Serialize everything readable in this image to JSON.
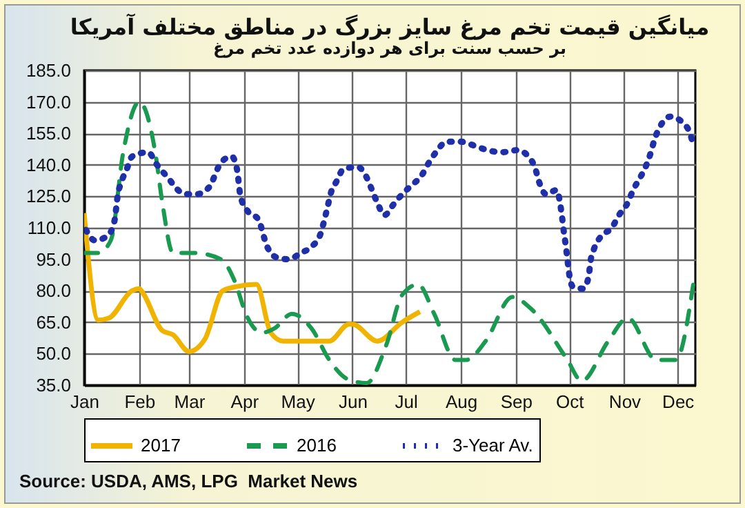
{
  "chart_data": {
    "type": "line",
    "title": "میانگین قیمت تخم مرغ سایز بزرگ در مناطق مختلف آمریکا",
    "subtitle": "بر حسب سنت برای هر دوازده عدد تخم مرغ",
    "annotations": [
      "Source: USDA, AMS, LPG  Market News"
    ],
    "xlim": [
      "--01-01",
      "--12-11"
    ],
    "xticks": [
      {
        "value": "--01-01",
        "label": "Jan"
      },
      {
        "value": "--02-01",
        "label": "Feb"
      },
      {
        "value": "--03-01",
        "label": "Mar"
      },
      {
        "value": "--04-01",
        "label": "Apr"
      },
      {
        "value": "--05-01",
        "label": "May"
      },
      {
        "value": "--06-01",
        "label": "Jun"
      },
      {
        "value": "--07-01",
        "label": "Jul"
      },
      {
        "value": "--08-01",
        "label": "Aug"
      },
      {
        "value": "--09-01",
        "label": "Sep"
      },
      {
        "value": "--10-01",
        "label": "Oct"
      },
      {
        "value": "--11-01",
        "label": "Nov"
      },
      {
        "value": "--12-01",
        "label": "Dec"
      }
    ],
    "ylim": [
      35,
      185
    ],
    "yticks": [
      {
        "value": 35,
        "label": "35.0"
      },
      {
        "value": 50,
        "label": "50.0"
      },
      {
        "value": 65,
        "label": "65.0"
      },
      {
        "value": 80,
        "label": "80.0"
      },
      {
        "value": 95,
        "label": "95.0"
      },
      {
        "value": 110,
        "label": "110.0"
      },
      {
        "value": 125,
        "label": "125.0"
      },
      {
        "value": 140,
        "label": "140.0"
      },
      {
        "value": 155,
        "label": "155.0"
      },
      {
        "value": 170,
        "label": "170.0"
      },
      {
        "value": 185,
        "label": "185.0"
      }
    ],
    "grid": true,
    "legend": "bottom",
    "series": [
      {
        "name": "2017",
        "color": "#f0b400",
        "line_style": "solid",
        "x": [
          "--01-01",
          "--01-09",
          "--01-15",
          "--01-28",
          "--02-01",
          "--02-03",
          "--02-14",
          "--02-20",
          "--03-01",
          "--03-10",
          "--03-20",
          "--03-28",
          "--04-08",
          "--04-16",
          "--04-23",
          "--05-01",
          "--05-19",
          "--05-30",
          "--06-01",
          "--06-15",
          "--06-29",
          "--07-09"
        ],
        "values": [
          117,
          66,
          67,
          80,
          81,
          79,
          61,
          59,
          51,
          57,
          80,
          82,
          83,
          60,
          56,
          56,
          56,
          64,
          64,
          56,
          65,
          70
        ]
      },
      {
        "name": "2016",
        "color": "#1a9a50",
        "line_style": "dashed",
        "x": [
          "--01-01",
          "--01-09",
          "--01-16",
          "--01-23",
          "--02-01",
          "--02-10",
          "--02-14",
          "--02-20",
          "--03-04",
          "--03-19",
          "--03-27",
          "--04-02",
          "--04-11",
          "--04-18",
          "--04-28",
          "--05-09",
          "--05-19",
          "--05-29",
          "--06-09",
          "--06-20",
          "--06-29",
          "--07-08",
          "--07-17",
          "--07-29",
          "--08-04",
          "--08-15",
          "--08-30",
          "--09-10",
          "--09-30",
          "--10-08",
          "--10-23",
          "--11-03",
          "--11-19",
          "--11-30",
          "--12-10"
        ],
        "values": [
          98,
          98,
          104,
          146,
          170,
          146,
          122,
          98,
          98,
          95,
          84,
          69,
          60,
          62,
          69,
          62,
          47,
          38,
          36,
          54,
          78,
          83,
          69,
          47,
          47,
          56,
          77,
          71,
          47,
          37,
          56,
          67,
          47,
          47,
          84
        ]
      },
      {
        "name": "3-Year Av.",
        "color": "#1f2fa8",
        "line_style": "dotted",
        "x": [
          "--01-02",
          "--01-07",
          "--01-14",
          "--01-18",
          "--01-20",
          "--01-22",
          "--01-25",
          "--01-28",
          "--02-06",
          "--02-11",
          "--02-16",
          "--02-27",
          "--03-05",
          "--03-12",
          "--03-19",
          "--03-25",
          "--03-28",
          "--03-30",
          "--04-03",
          "--04-09",
          "--04-14",
          "--04-19",
          "--04-26",
          "--05-03",
          "--05-09",
          "--05-14",
          "--05-16",
          "--05-18",
          "--05-20",
          "--05-23",
          "--05-27",
          "--06-04",
          "--06-09",
          "--06-12",
          "--06-15",
          "--06-19",
          "--06-24",
          "--06-29",
          "--07-04",
          "--07-10",
          "--07-14",
          "--07-18",
          "--07-24",
          "--08-01",
          "--08-09",
          "--08-16",
          "--08-24",
          "--09-02",
          "--09-08",
          "--09-12",
          "--09-14",
          "--09-18",
          "--09-24",
          "--09-26",
          "--09-27",
          "--09-28",
          "--09-29",
          "--09-30",
          "--10-01",
          "--10-03",
          "--10-09",
          "--10-12",
          "--10-13",
          "--10-15",
          "--10-19",
          "--10-25",
          "--10-29",
          "--11-03",
          "--11-06",
          "--11-10",
          "--11-13",
          "--11-16",
          "--11-18",
          "--11-21",
          "--11-27",
          "--12-04",
          "--12-08",
          "--12-10"
        ],
        "values": [
          109,
          104,
          106,
          113,
          126,
          132,
          138,
          144,
          146,
          140,
          135,
          126,
          126,
          129,
          141,
          144,
          138,
          125,
          118,
          114,
          101,
          96,
          95,
          98,
          101,
          107,
          113,
          120,
          127,
          132,
          138,
          139,
          134,
          128,
          122,
          116,
          121,
          126,
          130,
          135,
          141,
          146,
          151,
          151,
          149,
          147,
          146,
          147,
          144,
          138,
          132,
          126,
          128,
          121,
          115,
          108,
          102,
          95,
          88,
          82,
          81,
          87,
          94,
          100,
          106,
          110,
          116,
          122,
          128,
          134,
          139,
          146,
          152,
          158,
          163,
          160,
          155,
          149
        ]
      }
    ]
  }
}
